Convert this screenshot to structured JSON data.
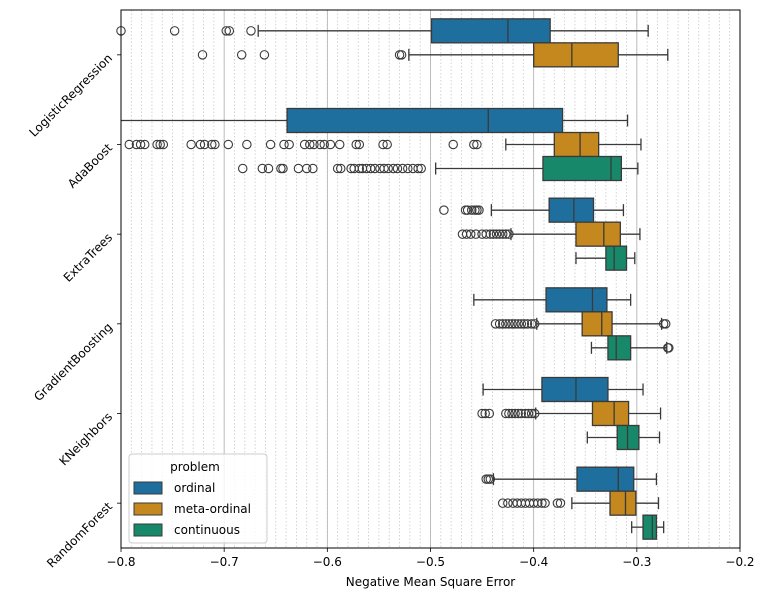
{
  "chart_data": {
    "type": "boxplot",
    "orientation": "horizontal",
    "title": "",
    "xlabel": "Negative Mean Square Error",
    "ylabel": "",
    "xlim": [
      -0.8,
      -0.2
    ],
    "xticks": [
      -0.8,
      -0.7,
      -0.6,
      -0.5,
      -0.4,
      -0.3,
      -0.2
    ],
    "xtick_labels": [
      "−0.8",
      "−0.7",
      "−0.6",
      "−0.5",
      "−0.4",
      "−0.3",
      "−0.2"
    ],
    "minor_grid_step": 0.01,
    "grid": true,
    "categories": [
      "LogisticRegression",
      "AdaBoost",
      "ExtraTrees",
      "GradientBoosting",
      "KNeighbors",
      "RandomForest"
    ],
    "legend": {
      "title": "problem",
      "placement": "lower-left",
      "entries": [
        {
          "label": "ordinal",
          "color": "#1f6f9e"
        },
        {
          "label": "meta-ordinal",
          "color": "#c4881f"
        },
        {
          "label": "continuous",
          "color": "#17896a"
        }
      ]
    },
    "series": [
      {
        "name": "ordinal",
        "color": "#1f6f9e",
        "boxes": [
          {
            "category": "LogisticRegression",
            "whislo": -0.667,
            "q1": -0.499,
            "med": -0.425,
            "q3": -0.384,
            "whishi": -0.289,
            "fliers": [
              -0.8,
              -0.748,
              -0.698,
              -0.695,
              -0.674
            ]
          },
          {
            "category": "AdaBoost",
            "whislo": -0.8,
            "q1": -0.639,
            "med": -0.444,
            "q3": -0.372,
            "whishi": -0.309,
            "fliers": []
          },
          {
            "category": "ExtraTrees",
            "whislo": -0.441,
            "q1": -0.385,
            "med": -0.361,
            "q3": -0.342,
            "whishi": -0.313,
            "fliers": [
              -0.487,
              -0.466,
              -0.464,
              -0.46,
              -0.457,
              -0.455,
              -0.453
            ]
          },
          {
            "category": "GradientBoosting",
            "whislo": -0.458,
            "q1": -0.388,
            "med": -0.343,
            "q3": -0.329,
            "whishi": -0.306,
            "fliers": []
          },
          {
            "category": "KNeighbors",
            "whislo": -0.449,
            "q1": -0.392,
            "med": -0.359,
            "q3": -0.328,
            "whishi": -0.294,
            "fliers": []
          },
          {
            "category": "RandomForest",
            "whislo": -0.439,
            "q1": -0.358,
            "med": -0.318,
            "q3": -0.303,
            "whishi": -0.281,
            "fliers": [
              -0.446,
              -0.444,
              -0.442
            ]
          }
        ]
      },
      {
        "name": "meta-ordinal",
        "color": "#c4881f",
        "boxes": [
          {
            "category": "LogisticRegression",
            "whislo": -0.521,
            "q1": -0.4,
            "med": -0.363,
            "q3": -0.318,
            "whishi": -0.27,
            "fliers": [
              -0.721,
              -0.683,
              -0.661,
              -0.53,
              -0.528
            ]
          },
          {
            "category": "AdaBoost",
            "whislo": -0.427,
            "q1": -0.38,
            "med": -0.355,
            "q3": -0.337,
            "whishi": -0.296,
            "fliers": [
              -0.792,
              -0.785,
              -0.781,
              -0.777,
              -0.765,
              -0.762,
              -0.759,
              -0.732,
              -0.723,
              -0.719,
              -0.712,
              -0.709,
              -0.696,
              -0.678,
              -0.655,
              -0.642,
              -0.637,
              -0.622,
              -0.617,
              -0.613,
              -0.607,
              -0.603,
              -0.597,
              -0.588,
              -0.572,
              -0.569,
              -0.546,
              -0.542,
              -0.478,
              -0.458,
              -0.455
            ]
          },
          {
            "category": "ExtraTrees",
            "whislo": -0.422,
            "q1": -0.359,
            "med": -0.332,
            "q3": -0.316,
            "whishi": -0.297,
            "fliers": [
              -0.469,
              -0.465,
              -0.461,
              -0.456,
              -0.45,
              -0.446,
              -0.442,
              -0.439,
              -0.436,
              -0.433,
              -0.43,
              -0.427,
              -0.424
            ]
          },
          {
            "category": "GradientBoosting",
            "whislo": -0.397,
            "q1": -0.353,
            "med": -0.334,
            "q3": -0.324,
            "whishi": -0.276,
            "fliers": [
              -0.437,
              -0.433,
              -0.43,
              -0.427,
              -0.424,
              -0.421,
              -0.418,
              -0.415,
              -0.412,
              -0.409,
              -0.406,
              -0.402,
              -0.399,
              -0.274,
              -0.272
            ]
          },
          {
            "category": "KNeighbors",
            "whislo": -0.398,
            "q1": -0.343,
            "med": -0.322,
            "q3": -0.308,
            "whishi": -0.277,
            "fliers": [
              -0.45,
              -0.447,
              -0.443,
              -0.427,
              -0.424,
              -0.421,
              -0.418,
              -0.415,
              -0.412,
              -0.408,
              -0.405,
              -0.402,
              -0.399
            ]
          },
          {
            "category": "RandomForest",
            "whislo": -0.363,
            "q1": -0.326,
            "med": -0.311,
            "q3": -0.301,
            "whishi": -0.279,
            "fliers": [
              -0.43,
              -0.425,
              -0.42,
              -0.416,
              -0.412,
              -0.408,
              -0.404,
              -0.4,
              -0.396,
              -0.392,
              -0.389,
              -0.377,
              -0.374
            ]
          }
        ]
      },
      {
        "name": "continuous",
        "color": "#17896a",
        "boxes": [
          {
            "category": "LogisticRegression",
            "whislo": null,
            "q1": null,
            "med": null,
            "q3": null,
            "whishi": null,
            "fliers": []
          },
          {
            "category": "AdaBoost",
            "whislo": -0.495,
            "q1": -0.391,
            "med": -0.325,
            "q3": -0.315,
            "whishi": -0.299,
            "fliers": [
              -0.682,
              -0.663,
              -0.657,
              -0.645,
              -0.643,
              -0.628,
              -0.62,
              -0.614,
              -0.59,
              -0.587,
              -0.577,
              -0.574,
              -0.569,
              -0.566,
              -0.562,
              -0.558,
              -0.554,
              -0.549,
              -0.545,
              -0.541,
              -0.536,
              -0.532,
              -0.527,
              -0.522,
              -0.517,
              -0.512,
              -0.509
            ]
          },
          {
            "category": "ExtraTrees",
            "whislo": -0.359,
            "q1": -0.33,
            "med": -0.322,
            "q3": -0.31,
            "whishi": -0.302,
            "fliers": []
          },
          {
            "category": "GradientBoosting",
            "whislo": -0.344,
            "q1": -0.328,
            "med": -0.32,
            "q3": -0.306,
            "whishi": -0.271,
            "fliers": [
              -0.27,
              -0.269
            ]
          },
          {
            "category": "KNeighbors",
            "whislo": -0.348,
            "q1": -0.319,
            "med": -0.309,
            "q3": -0.298,
            "whishi": -0.278,
            "fliers": []
          },
          {
            "category": "RandomForest",
            "whislo": -0.305,
            "q1": -0.294,
            "med": -0.285,
            "q3": -0.281,
            "whishi": -0.274,
            "fliers": []
          }
        ]
      }
    ]
  }
}
